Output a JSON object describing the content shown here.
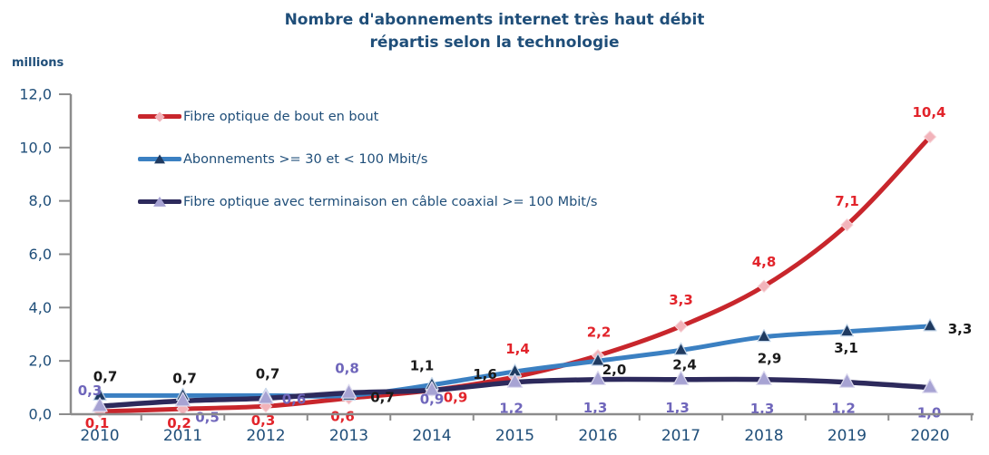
{
  "chart_data": {
    "type": "line",
    "title": "Nombre d'abonnements internet très haut débit répartis selon la technologie",
    "title_lines": [
      "Nombre d'abonnements internet très haut débit",
      "répartis selon la technologie"
    ],
    "ylabel": "millions",
    "xlabel": "",
    "categories": [
      "2010",
      "2011",
      "2012",
      "2013",
      "2014",
      "2015",
      "2016",
      "2017",
      "2018",
      "2019",
      "2020"
    ],
    "y_axis": {
      "min": 0,
      "max": 12,
      "tick_step": 2,
      "tick_labels": [
        "0,0",
        "2,0",
        "4,0",
        "6,0",
        "8,0",
        "10,0",
        "12,0"
      ]
    },
    "grid": false,
    "legend_position": "inside-top-left",
    "line_style": "smooth",
    "series": [
      {
        "name": "Fibre optique de bout en bout",
        "values": [
          0.1,
          0.2,
          0.3,
          0.6,
          0.9,
          1.4,
          2.2,
          3.3,
          4.8,
          7.1,
          10.4
        ],
        "labels": [
          "0,1",
          "0,2",
          "0,3",
          "0,6",
          "0,9",
          "1,4",
          "2,2",
          "3,3",
          "4,8",
          "7,1",
          "10,4"
        ],
        "color": "#C8262C",
        "marker": "diamond",
        "marker_color": "#F2B3BA",
        "label_color": "#E2242B"
      },
      {
        "name": "Abonnements >= 30 et < 100 Mbit/s",
        "values": [
          0.7,
          0.7,
          0.7,
          0.7,
          1.1,
          1.6,
          2.0,
          2.4,
          2.9,
          3.1,
          3.3
        ],
        "labels": [
          "0,7",
          "0,7",
          "0,7",
          "0,7",
          "1,1",
          "1,6",
          "2,0",
          "2,4",
          "2,9",
          "3,1",
          "3,3"
        ],
        "color": "#3B80C2",
        "marker": "triangle",
        "marker_color": "#1F3A60",
        "label_color": "#1A1A1A"
      },
      {
        "name": "Fibre optique avec terminaison en câble coaxial >= 100 Mbit/s",
        "values": [
          0.3,
          0.5,
          0.6,
          0.8,
          0.9,
          1.2,
          1.3,
          1.3,
          1.3,
          1.2,
          1.0
        ],
        "labels": [
          "0,3",
          "0,5",
          "0,6",
          "0,8",
          "0,9",
          "1,2",
          "1,3",
          "1,3",
          "1,3",
          "1,2",
          "1,0"
        ],
        "color": "#2D2A5C",
        "marker": "triangle",
        "marker_color": "#A7A3D3",
        "label_color": "#6F66BB"
      }
    ],
    "colors": {
      "text": "#1F4E79",
      "axis": "#8C8C8C"
    }
  }
}
